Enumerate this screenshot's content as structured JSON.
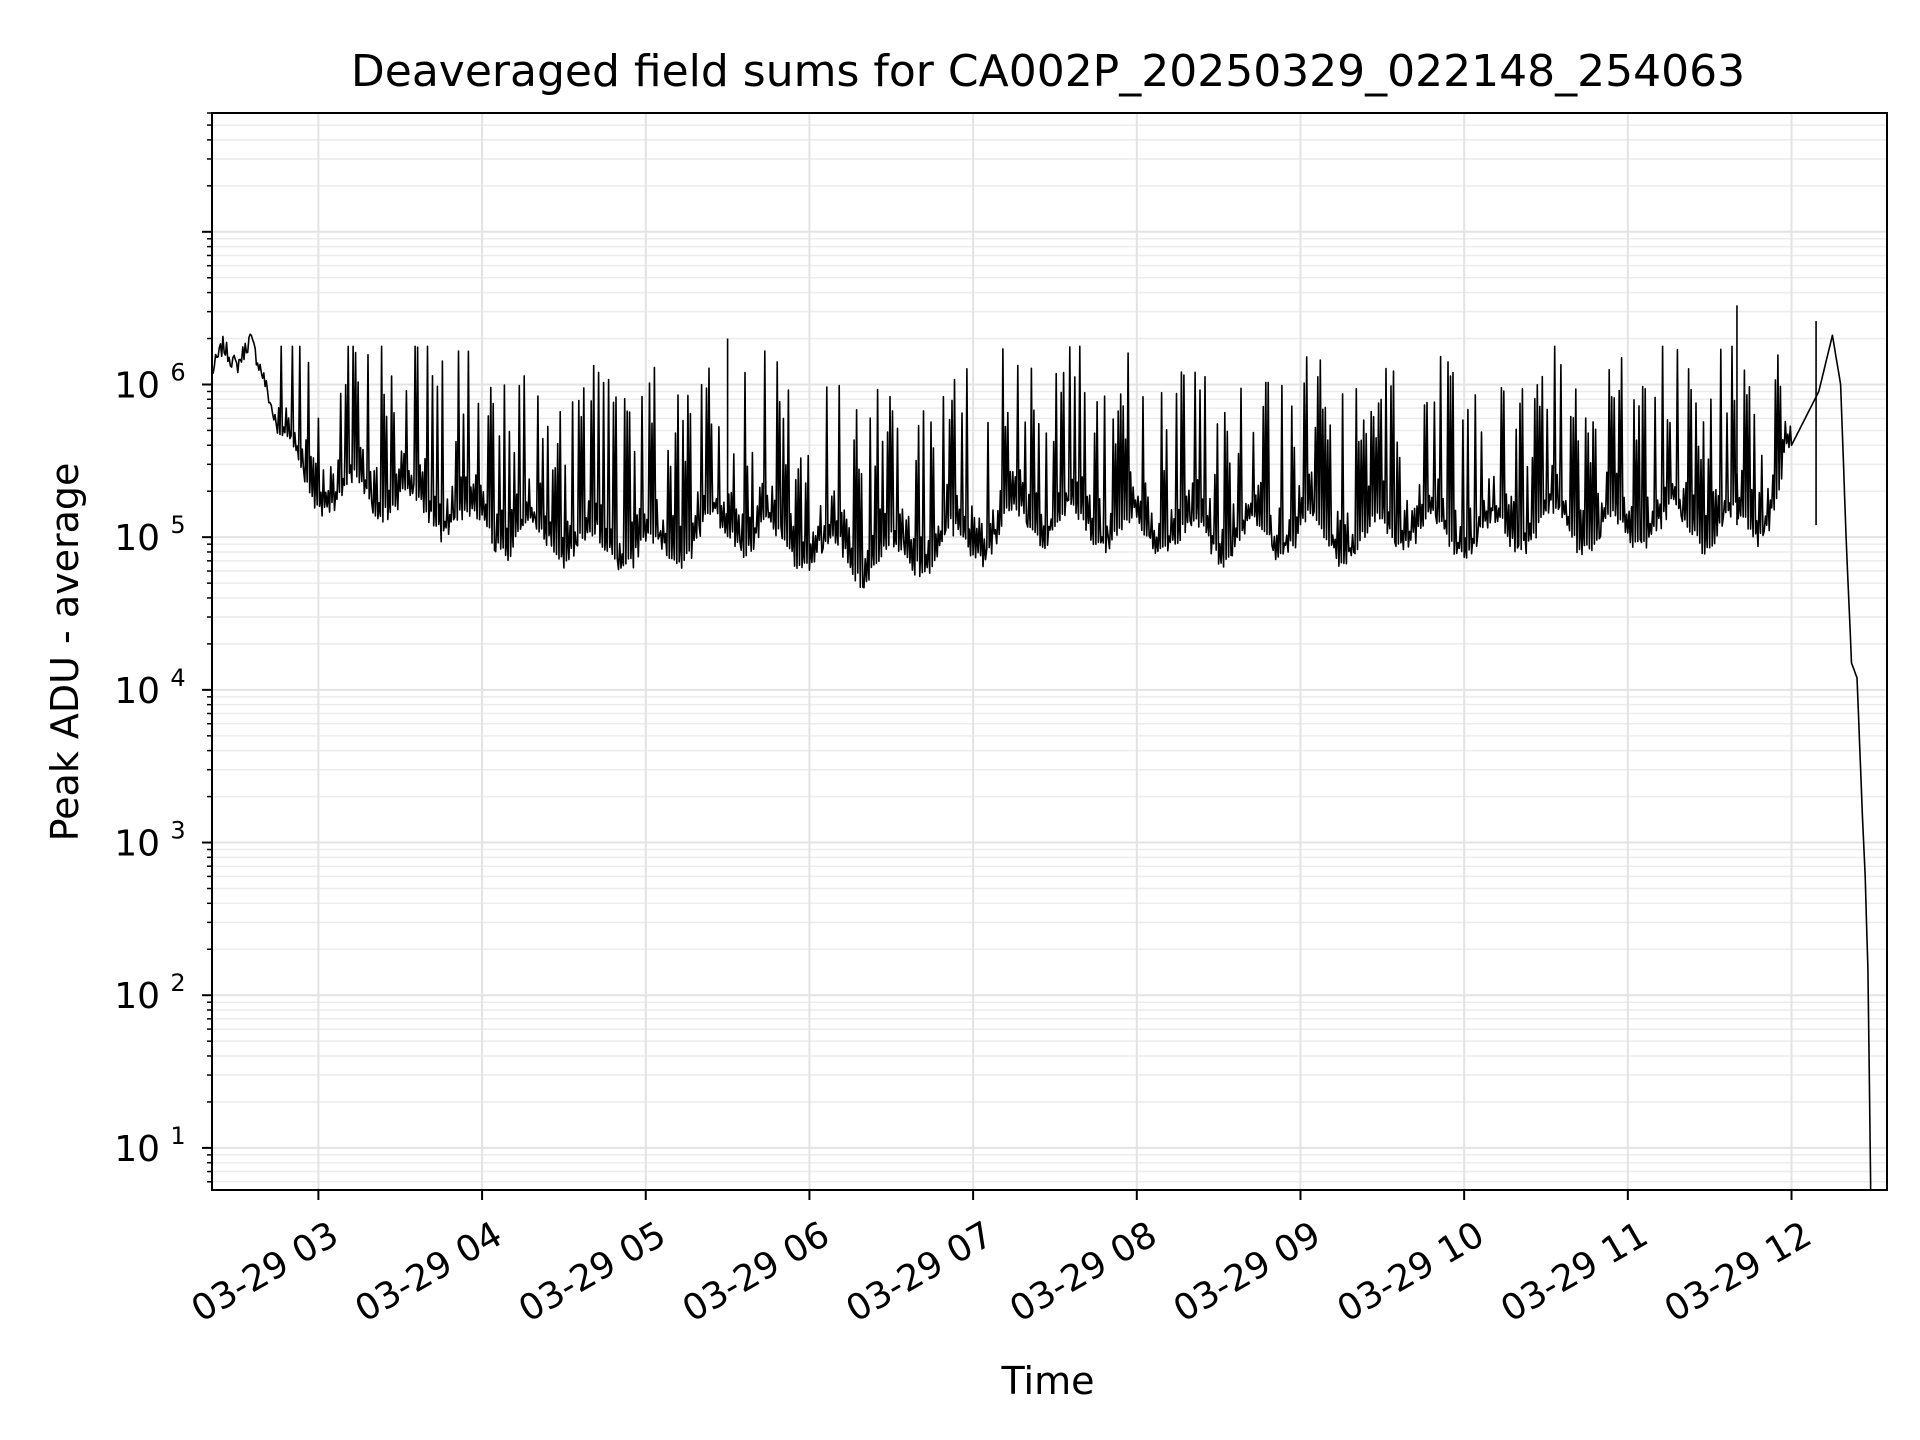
{
  "chart_data": {
    "type": "line",
    "title": "Deaveraged field sums for CA002P_20250329_022148_254063",
    "xlabel": "Time",
    "ylabel": "Peak ADU - average",
    "yscale": "log",
    "ylim": [
      5.3,
      60000000
    ],
    "xlim": [
      "2025-03-29 02:21",
      "2025-03-29 12:35"
    ],
    "x_ticks": [
      "03-29 03",
      "03-29 04",
      "03-29 05",
      "03-29 06",
      "03-29 07",
      "03-29 08",
      "03-29 09",
      "03-29 10",
      "03-29 11",
      "03-29 12"
    ],
    "y_ticks": [
      {
        "base": "10",
        "exp": "1",
        "value": 10
      },
      {
        "base": "10",
        "exp": "2",
        "value": 100
      },
      {
        "base": "10",
        "exp": "3",
        "value": 1000
      },
      {
        "base": "10",
        "exp": "4",
        "value": 10000
      },
      {
        "base": "10",
        "exp": "5",
        "value": 100000
      },
      {
        "base": "10",
        "exp": "6",
        "value": 1000000
      }
    ],
    "grid": true,
    "line_color": "#000000",
    "series": [
      {
        "x": [
          "2025-03-29 02:21",
          "2025-03-29 02:25",
          "2025-03-29 02:30",
          "2025-03-29 02:35",
          "2025-03-29 02:40",
          "2025-03-29 02:45",
          "2025-03-29 02:50",
          "2025-03-29 02:55",
          "2025-03-29 03:05",
          "2025-03-29 03:20",
          "2025-03-29 03:35",
          "2025-03-29 03:50",
          "2025-03-29 04:05",
          "2025-03-29 04:20",
          "2025-03-29 04:35",
          "2025-03-29 04:50",
          "2025-03-29 05:05",
          "2025-03-29 05:20",
          "2025-03-29 05:35",
          "2025-03-29 05:50",
          "2025-03-29 06:05",
          "2025-03-29 06:20",
          "2025-03-29 06:35",
          "2025-03-29 06:50",
          "2025-03-29 07:05",
          "2025-03-29 07:20",
          "2025-03-29 07:35",
          "2025-03-29 07:50",
          "2025-03-29 08:05",
          "2025-03-29 08:20",
          "2025-03-29 08:35",
          "2025-03-29 08:50",
          "2025-03-29 09:05",
          "2025-03-29 09:20",
          "2025-03-29 09:35",
          "2025-03-29 09:50",
          "2025-03-29 10:05",
          "2025-03-29 10:20",
          "2025-03-29 10:35",
          "2025-03-29 10:50",
          "2025-03-29 11:05",
          "2025-03-29 11:20",
          "2025-03-29 11:35",
          "2025-03-29 11:50",
          "2025-03-29 12:00",
          "2025-03-29 12:05",
          "2025-03-29 12:10",
          "2025-03-29 12:15",
          "2025-03-29 12:18",
          "2025-03-29 12:20",
          "2025-03-29 12:22",
          "2025-03-29 12:24",
          "2025-03-29 12:26",
          "2025-03-29 12:27",
          "2025-03-29 12:28",
          "2025-03-29 12:29"
        ],
        "y": [
          1200000,
          1800000,
          1300000,
          2000000,
          1100000,
          500000,
          350000,
          250000,
          200000,
          220000,
          180000,
          150000,
          120000,
          110000,
          100000,
          95000,
          85000,
          120000,
          130000,
          100000,
          90000,
          80000,
          85000,
          100000,
          110000,
          150000,
          140000,
          130000,
          120000,
          110000,
          105000,
          115000,
          120000,
          100000,
          130000,
          115000,
          110000,
          125000,
          140000,
          120000,
          130000,
          140000,
          125000,
          150000,
          400000,
          600000,
          900000,
          2100000,
          1000000,
          100000,
          15000,
          12000,
          1500,
          600,
          150,
          6
        ]
      }
    ]
  }
}
